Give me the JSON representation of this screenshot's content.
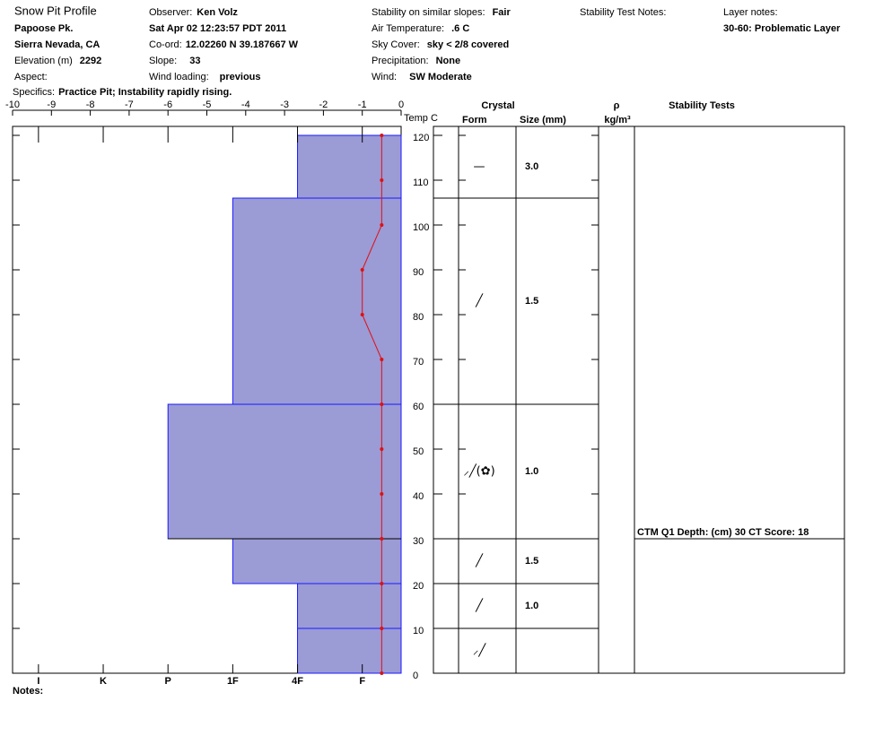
{
  "header": {
    "title": "Snow Pit Profile",
    "location": "Papoose Pk.",
    "region": "Sierra Nevada, CA",
    "elevation": {
      "label": "Elevation (m)",
      "value": "2292"
    },
    "aspect": {
      "label": "Aspect:"
    },
    "specifics": {
      "label": "Specifics:",
      "value": "Practice Pit; Instability rapidly rising."
    },
    "observer": {
      "label": "Observer:",
      "value": "Ken Volz"
    },
    "date": "Sat Apr 02 12:23:57 PDT 2011",
    "coord": {
      "label": "Co-ord:",
      "value": "12.02260 N 39.187667 W"
    },
    "slope": {
      "label": "Slope:",
      "value": "33"
    },
    "wind_loading": {
      "label": "Wind loading:",
      "value": "previous"
    },
    "stability": {
      "label": "Stability on similar slopes:",
      "value": "Fair"
    },
    "air_temp": {
      "label": "Air Temperature:",
      "value": ".6 C"
    },
    "sky": {
      "label": "Sky Cover:",
      "value": "sky < 2/8 covered"
    },
    "precip": {
      "label": "Precipitation:",
      "value": "None"
    },
    "wind": {
      "label": "Wind:",
      "value": "SW Moderate"
    },
    "test_notes": "Stability Test Notes:",
    "layer_notes": {
      "label": "Layer notes:",
      "value": "30-60: Problematic Layer"
    },
    "notes": "Notes:"
  },
  "chart_data": {
    "type": "snowpit",
    "temp_label": "Temp C",
    "crystal_label": "Crystal",
    "form_label": "Form",
    "size_label": "Size (mm)",
    "density_label": "ρ",
    "density_unit": "kg/m³",
    "tests_label": "Stability Tests",
    "xlim": [
      -10,
      0
    ],
    "xticks": [
      -10,
      -9,
      -8,
      -7,
      -6,
      -5,
      -4,
      -3,
      -2,
      -1,
      0
    ],
    "ylim": [
      0,
      122
    ],
    "yticks": [
      0,
      10,
      20,
      30,
      40,
      50,
      60,
      70,
      80,
      90,
      100,
      110,
      120
    ],
    "hardness_lim": [
      0.6,
      6.6
    ],
    "hardness_ticks": [
      {
        "value": 1,
        "label": "I"
      },
      {
        "value": 2,
        "label": "K"
      },
      {
        "value": 3,
        "label": "P"
      },
      {
        "value": 4,
        "label": "1F"
      },
      {
        "value": 5,
        "label": "4F"
      },
      {
        "value": 6,
        "label": "F"
      }
    ],
    "layer_color": "#9b9bd6",
    "layer_edge": "#1a1aff",
    "temp_color": "#e01010",
    "layers": [
      {
        "top": 120,
        "bottom": 106,
        "hardness": 5,
        "form": "—",
        "size": "3.0"
      },
      {
        "top": 106,
        "bottom": 60,
        "hardness": 4,
        "form": "╱",
        "size": "1.5"
      },
      {
        "top": 60,
        "bottom": 30,
        "hardness": 3,
        "form": "⸝╱(✿)",
        "size": "1.0"
      },
      {
        "top": 30,
        "bottom": 20,
        "hardness": 4,
        "form": "╱",
        "size": "1.5"
      },
      {
        "top": 20,
        "bottom": 10,
        "hardness": 5,
        "form": "╱",
        "size": "1.0"
      },
      {
        "top": 10,
        "bottom": 0,
        "hardness": 5,
        "form": "⸝╱"
      }
    ],
    "depths": [
      120,
      110,
      100,
      90,
      80,
      70,
      60,
      50,
      40,
      30,
      20,
      10,
      0
    ],
    "temps": [
      -0.5,
      -0.5,
      -0.5,
      -1,
      -1,
      -0.5,
      -0.5,
      -0.5,
      -0.5,
      -0.5,
      -0.5,
      -0.5,
      -0.5
    ],
    "tests": [
      {
        "text": "CTM Q1 Depth: (cm) 30 CT Score: 18",
        "depth": 30
      }
    ]
  }
}
